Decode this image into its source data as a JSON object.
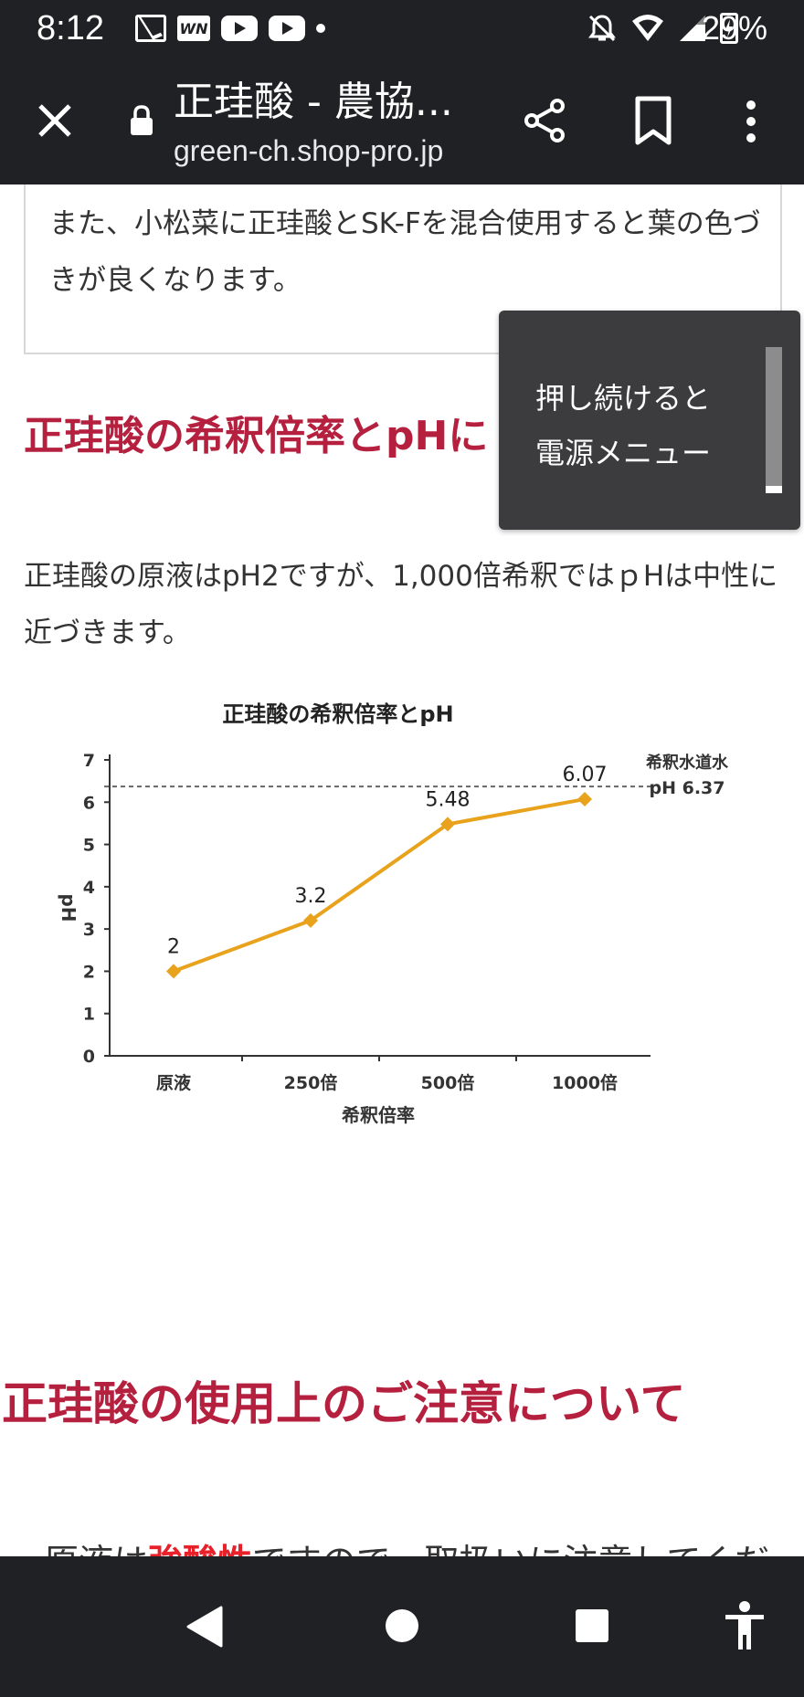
{
  "status_bar": {
    "time": "8:12",
    "battery": "29%",
    "wn_badge": "WN",
    "icons_left": [
      "mail-icon",
      "wn-icon",
      "youtube-icon",
      "youtube-icon",
      "dot-icon"
    ],
    "icons_right": [
      "bell-off-icon",
      "wifi-icon",
      "signal-icon",
      "battery-charging-icon"
    ]
  },
  "browser": {
    "title": "正珪酸 - 農協...",
    "url": "green-ch.shop-pro.jp"
  },
  "content": {
    "info_text": "また、小松菜に正珪酸とSK-Fを混合使用すると葉の色づきが良くなります。",
    "heading1": "正珪酸の希釈倍率とpHに",
    "paragraph": "正珪酸の原液はpH2ですが、1,000倍希釈ではｐHは中性に近づきます。",
    "heading2": "正珪酸の使用上のご注意について",
    "bullet_prefix": "・原液は",
    "bullet_strong": "強酸性",
    "bullet_rest": "ですので、取扱いに注意してくだ"
  },
  "tooltip": {
    "line1": "押し続けると",
    "line2": "電源メニュー"
  },
  "chart_data": {
    "type": "line",
    "title": "正珪酸の希釈倍率とpH",
    "xlabel": "希釈倍率",
    "ylabel": "pH",
    "categories": [
      "原液",
      "250倍",
      "500倍",
      "1000倍"
    ],
    "values": [
      2,
      3.2,
      5.48,
      6.07
    ],
    "data_labels": [
      "2",
      "3.2",
      "5.48",
      "6.07"
    ],
    "ylim": [
      0,
      7
    ],
    "yticks": [
      "0",
      "1",
      "2",
      "3",
      "4",
      "5",
      "6",
      "7"
    ],
    "reference_line": {
      "value": 6.37,
      "label_line1": "希釈水道水",
      "label_line2": "pH 6.37"
    },
    "line_color": "#e8a21c",
    "ref_color": "#666666"
  },
  "colors": {
    "heading": "#b5203f",
    "strong_text": "#e8202a",
    "bar_bg": "#202124"
  }
}
